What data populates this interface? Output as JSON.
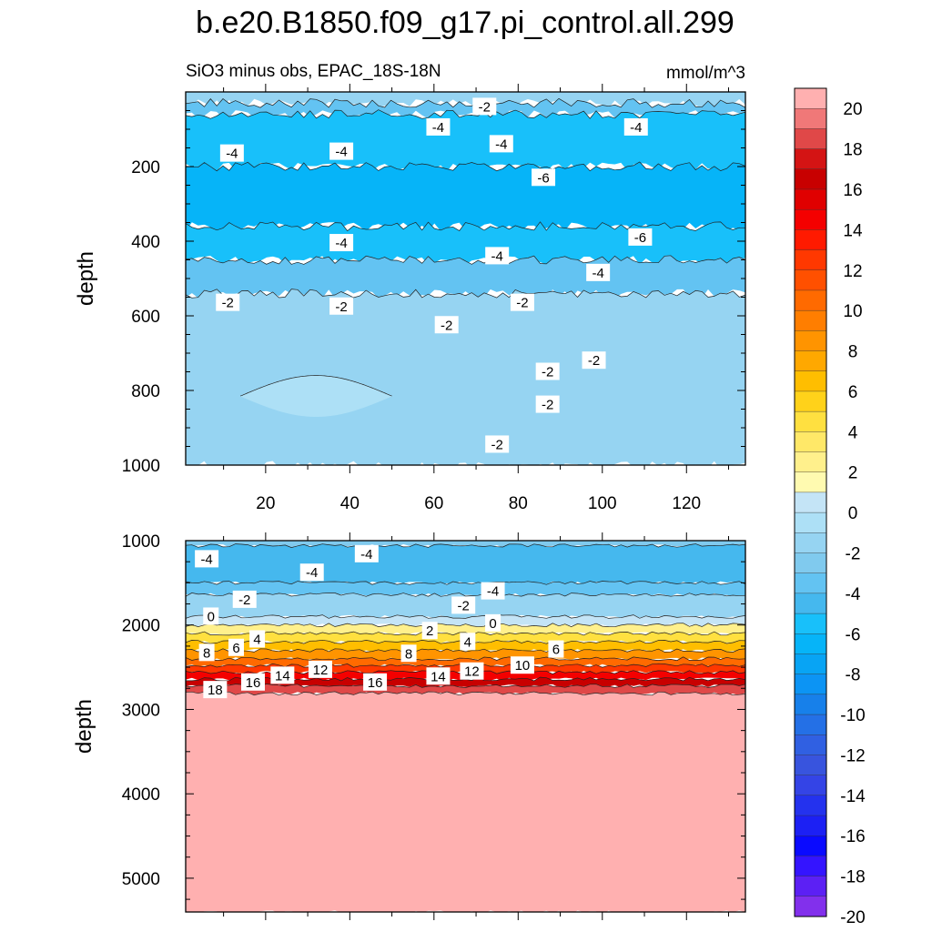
{
  "title": "b.e20.B1850.f09_g17.pi_control.all.299",
  "subtitle_left": "SiO3 minus obs, EPAC_18S-18N",
  "subtitle_right": "mmol/m^3",
  "chart_data": [
    {
      "type": "heatmap",
      "panel": "upper",
      "x_range": [
        1,
        134
      ],
      "xticks": [
        20,
        40,
        60,
        80,
        100,
        120
      ],
      "ylabel": "depth",
      "ylim": [
        1000,
        0
      ],
      "yticks": [
        200,
        400,
        600,
        800,
        1000
      ],
      "layers": [
        {
          "depth": [
            0,
            30
          ],
          "value": -1
        },
        {
          "depth": [
            30,
            60
          ],
          "value": -3
        },
        {
          "depth": [
            60,
            200
          ],
          "value": -5
        },
        {
          "depth": [
            200,
            360
          ],
          "value": -6.5
        },
        {
          "depth": [
            360,
            450
          ],
          "value": -5
        },
        {
          "depth": [
            450,
            540
          ],
          "value": -3
        },
        {
          "depth": [
            540,
            1000
          ],
          "value": -1.5
        },
        {
          "depth": [
            760,
            870
          ],
          "value": -0.7,
          "x": [
            14,
            50
          ]
        }
      ],
      "contour_labels": [
        {
          "text": "-2",
          "x": 72,
          "depth": 40
        },
        {
          "text": "-4",
          "x": 61,
          "depth": 95
        },
        {
          "text": "-4",
          "x": 108,
          "depth": 95
        },
        {
          "text": "-4",
          "x": 76,
          "depth": 140
        },
        {
          "text": "-4",
          "x": 12,
          "depth": 165
        },
        {
          "text": "-4",
          "x": 38,
          "depth": 160
        },
        {
          "text": "-6",
          "x": 86,
          "depth": 230
        },
        {
          "text": "-6",
          "x": 109,
          "depth": 390
        },
        {
          "text": "-4",
          "x": 38,
          "depth": 405
        },
        {
          "text": "-4",
          "x": 75,
          "depth": 440
        },
        {
          "text": "-4",
          "x": 99,
          "depth": 485
        },
        {
          "text": "-2",
          "x": 11,
          "depth": 565
        },
        {
          "text": "-2",
          "x": 38,
          "depth": 575
        },
        {
          "text": "-2",
          "x": 81,
          "depth": 565
        },
        {
          "text": "-2",
          "x": 63,
          "depth": 625
        },
        {
          "text": "-2",
          "x": 98,
          "depth": 720
        },
        {
          "text": "-2",
          "x": 87,
          "depth": 750
        },
        {
          "text": "-2",
          "x": 87,
          "depth": 838
        },
        {
          "text": "-2",
          "x": 75,
          "depth": 945
        }
      ]
    },
    {
      "type": "heatmap",
      "panel": "lower",
      "x_range": [
        1,
        134
      ],
      "ylabel": "depth",
      "ylim": [
        5400,
        1000
      ],
      "yticks": [
        1000,
        2000,
        3000,
        4000,
        5000
      ],
      "layers": [
        {
          "depth": [
            1000,
            1060
          ],
          "value": -2.5
        },
        {
          "depth": [
            1060,
            1500
          ],
          "value": -4.5
        },
        {
          "depth": [
            1500,
            1640
          ],
          "value": -3.5
        },
        {
          "depth": [
            1640,
            1900
          ],
          "value": -1.5
        },
        {
          "depth": [
            1900,
            2000
          ],
          "value": 1
        },
        {
          "depth": [
            2000,
            2100
          ],
          "value": 3
        },
        {
          "depth": [
            2100,
            2200
          ],
          "value": 5
        },
        {
          "depth": [
            2200,
            2300
          ],
          "value": 7
        },
        {
          "depth": [
            2300,
            2400
          ],
          "value": 9
        },
        {
          "depth": [
            2400,
            2480
          ],
          "value": 11
        },
        {
          "depth": [
            2480,
            2560
          ],
          "value": 13
        },
        {
          "depth": [
            2560,
            2640
          ],
          "value": 15
        },
        {
          "depth": [
            2640,
            2720
          ],
          "value": 17
        },
        {
          "depth": [
            2720,
            2810
          ],
          "value": 19
        },
        {
          "depth": [
            2810,
            5400
          ],
          "value": 21
        }
      ],
      "contour_labels": [
        {
          "text": "-4",
          "x": 6,
          "depth": 1220
        },
        {
          "text": "-4",
          "x": 44,
          "depth": 1160
        },
        {
          "text": "-4",
          "x": 31,
          "depth": 1380
        },
        {
          "text": "-2",
          "x": 15,
          "depth": 1700
        },
        {
          "text": "-2",
          "x": 67,
          "depth": 1770
        },
        {
          "text": "-4",
          "x": 74,
          "depth": 1600
        },
        {
          "text": "0",
          "x": 7,
          "depth": 1900
        },
        {
          "text": "0",
          "x": 74,
          "depth": 1980
        },
        {
          "text": "2",
          "x": 59,
          "depth": 2070
        },
        {
          "text": "4",
          "x": 18,
          "depth": 2170
        },
        {
          "text": "4",
          "x": 68,
          "depth": 2200
        },
        {
          "text": "6",
          "x": 13,
          "depth": 2270
        },
        {
          "text": "6",
          "x": 89,
          "depth": 2290
        },
        {
          "text": "8",
          "x": 6,
          "depth": 2330
        },
        {
          "text": "8",
          "x": 54,
          "depth": 2340
        },
        {
          "text": "10",
          "x": 81,
          "depth": 2480
        },
        {
          "text": "12",
          "x": 33,
          "depth": 2530
        },
        {
          "text": "12",
          "x": 69,
          "depth": 2550
        },
        {
          "text": "14",
          "x": 24,
          "depth": 2600
        },
        {
          "text": "14",
          "x": 61,
          "depth": 2610
        },
        {
          "text": "16",
          "x": 17,
          "depth": 2680
        },
        {
          "text": "16",
          "x": 46,
          "depth": 2680
        },
        {
          "text": "18",
          "x": 8,
          "depth": 2770
        }
      ]
    }
  ],
  "colorbar": {
    "label_values": [
      20,
      18,
      16,
      14,
      12,
      10,
      8,
      6,
      4,
      2,
      0,
      -2,
      -4,
      -6,
      -8,
      -10,
      -12,
      -14,
      -16,
      -18,
      -20
    ],
    "colors": [
      "#ffb0b0",
      "#f07878",
      "#e04848",
      "#d41414",
      "#c80000",
      "#e00000",
      "#f40000",
      "#ff1a00",
      "#ff3800",
      "#ff5000",
      "#ff6a00",
      "#ff7e00",
      "#ff9400",
      "#ffa800",
      "#ffbe00",
      "#ffd21a",
      "#ffe040",
      "#ffe868",
      "#fff08c",
      "#fffab0",
      "#c4e4f6",
      "#ade0f6",
      "#96d4f2",
      "#80caee",
      "#63c3f2",
      "#45b8ee",
      "#18c0fa",
      "#06b4f8",
      "#08a4f4",
      "#0c94f4",
      "#1780ea",
      "#2470e6",
      "#3060e2",
      "#3854de",
      "#3444e6",
      "#2432ee",
      "#1c20f4",
      "#0a0aff",
      "#3414ff",
      "#5c20f4",
      "#8230ec"
    ],
    "vmin": -21,
    "vmax": 21,
    "step": 1
  }
}
